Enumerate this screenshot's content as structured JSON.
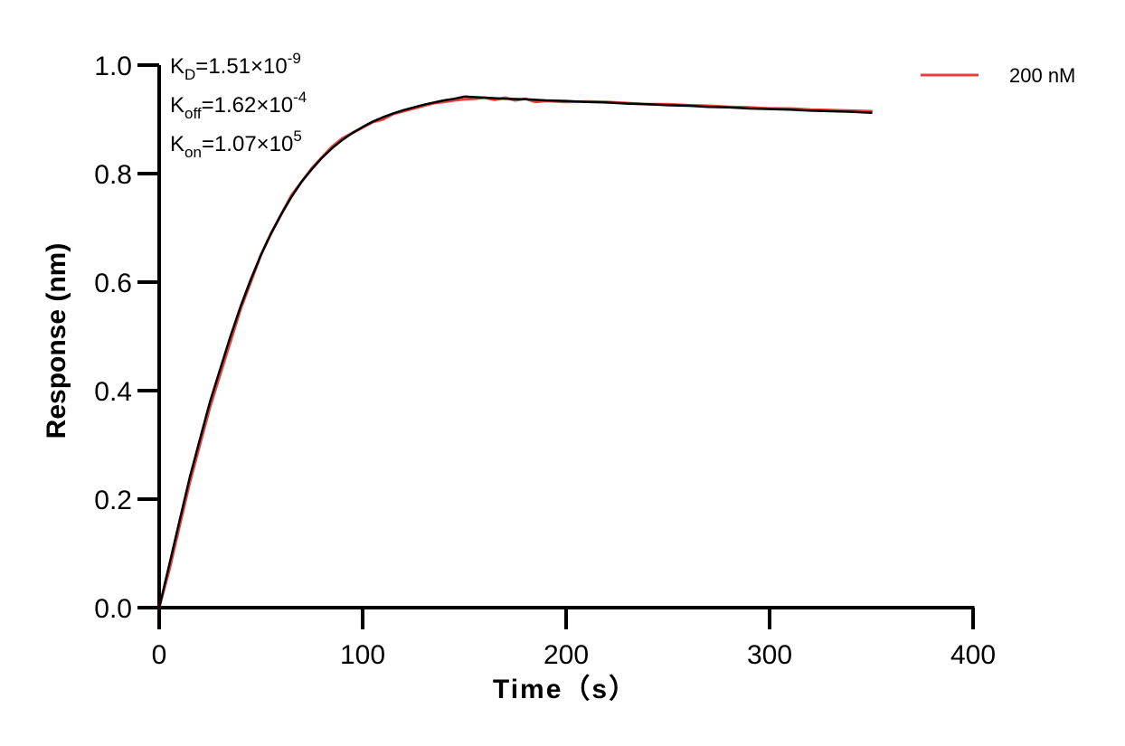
{
  "chart_data": {
    "type": "line",
    "title": "",
    "xlabel": "Time（s）",
    "ylabel": "Response (nm)",
    "xlim": [
      0,
      400
    ],
    "ylim": [
      0,
      1.0
    ],
    "x_ticks": [
      "0",
      "100",
      "200",
      "300",
      "400"
    ],
    "y_ticks": [
      "0.0",
      "0.2",
      "0.4",
      "0.6",
      "0.8",
      "1.0"
    ],
    "grid": false,
    "legend": {
      "position": "top-right",
      "entries": [
        "200 nM"
      ]
    },
    "annotations": [
      {
        "base": "K",
        "sub": "D",
        "value": "=1.51×10",
        "exp": "-9"
      },
      {
        "base": "K",
        "sub": "off",
        "value": "=1.62×10",
        "exp": "-4"
      },
      {
        "base": "K",
        "sub": "on",
        "value": "=1.07×10",
        "exp": "5"
      }
    ],
    "series": [
      {
        "name": "200 nM",
        "color": "#e8413c",
        "x": [
          0,
          5,
          10,
          15,
          20,
          25,
          30,
          35,
          40,
          45,
          50,
          55,
          60,
          65,
          70,
          75,
          80,
          85,
          90,
          95,
          100,
          105,
          110,
          115,
          120,
          125,
          130,
          135,
          140,
          145,
          150,
          155,
          160,
          165,
          170,
          175,
          180,
          185,
          190,
          200,
          210,
          220,
          230,
          240,
          250,
          260,
          270,
          280,
          290,
          300,
          310,
          320,
          330,
          340,
          350
        ],
        "y": [
          0.0,
          0.07,
          0.15,
          0.23,
          0.3,
          0.37,
          0.43,
          0.49,
          0.55,
          0.6,
          0.65,
          0.69,
          0.725,
          0.76,
          0.785,
          0.81,
          0.83,
          0.85,
          0.865,
          0.875,
          0.885,
          0.895,
          0.9,
          0.91,
          0.915,
          0.92,
          0.925,
          0.93,
          0.932,
          0.935,
          0.937,
          0.938,
          0.94,
          0.936,
          0.94,
          0.935,
          0.938,
          0.932,
          0.934,
          0.932,
          0.933,
          0.932,
          0.93,
          0.928,
          0.928,
          0.926,
          0.925,
          0.923,
          0.922,
          0.92,
          0.92,
          0.918,
          0.917,
          0.916,
          0.915
        ]
      },
      {
        "name": "",
        "color": "#000000",
        "x": [
          0,
          5,
          10,
          15,
          20,
          25,
          30,
          35,
          40,
          45,
          50,
          55,
          60,
          65,
          70,
          75,
          80,
          85,
          90,
          95,
          100,
          105,
          110,
          115,
          120,
          125,
          130,
          135,
          140,
          145,
          150,
          160,
          170,
          180,
          190,
          200,
          210,
          220,
          230,
          240,
          250,
          260,
          270,
          280,
          290,
          300,
          310,
          320,
          330,
          340,
          350
        ],
        "y": [
          0.0,
          0.08,
          0.16,
          0.24,
          0.31,
          0.38,
          0.44,
          0.5,
          0.555,
          0.605,
          0.65,
          0.69,
          0.725,
          0.757,
          0.785,
          0.808,
          0.829,
          0.847,
          0.862,
          0.875,
          0.886,
          0.896,
          0.904,
          0.911,
          0.917,
          0.922,
          0.927,
          0.931,
          0.935,
          0.938,
          0.942,
          0.94,
          0.938,
          0.937,
          0.935,
          0.934,
          0.932,
          0.931,
          0.929,
          0.928,
          0.926,
          0.925,
          0.923,
          0.922,
          0.92,
          0.919,
          0.918,
          0.916,
          0.915,
          0.914,
          0.912
        ]
      }
    ]
  }
}
